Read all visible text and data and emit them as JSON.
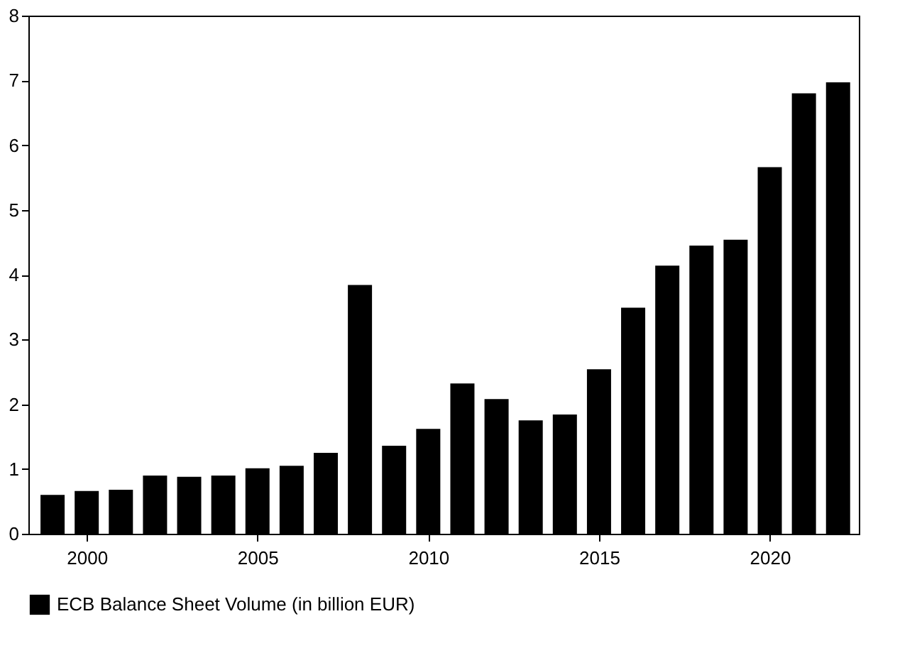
{
  "chart_data": {
    "type": "bar",
    "x": [
      1999,
      2000,
      2001,
      2002,
      2003,
      2004,
      2005,
      2006,
      2007,
      2008,
      2009,
      2010,
      2011,
      2012,
      2013,
      2014,
      2015,
      2016,
      2017,
      2018,
      2019,
      2020,
      2021,
      2022
    ],
    "series": [
      {
        "name": "ECB Balance Sheet Volume (in billion EUR)",
        "color": "#000000",
        "values": [
          0.6,
          0.66,
          0.68,
          0.9,
          0.88,
          0.9,
          1.01,
          1.05,
          1.25,
          3.84,
          1.36,
          1.62,
          2.32,
          2.08,
          1.75,
          1.84,
          2.54,
          3.49,
          4.14,
          4.45,
          4.54,
          5.66,
          6.8,
          6.97
        ]
      }
    ],
    "xlim": [
      1998.5,
      2022.4
    ],
    "xticks": [
      2000,
      2005,
      2010,
      2015,
      2020
    ],
    "ylim": [
      0,
      8
    ],
    "yticks": [
      0,
      1,
      2,
      3,
      4,
      5,
      6,
      7,
      8
    ],
    "grid": false,
    "legend": "bottom"
  }
}
